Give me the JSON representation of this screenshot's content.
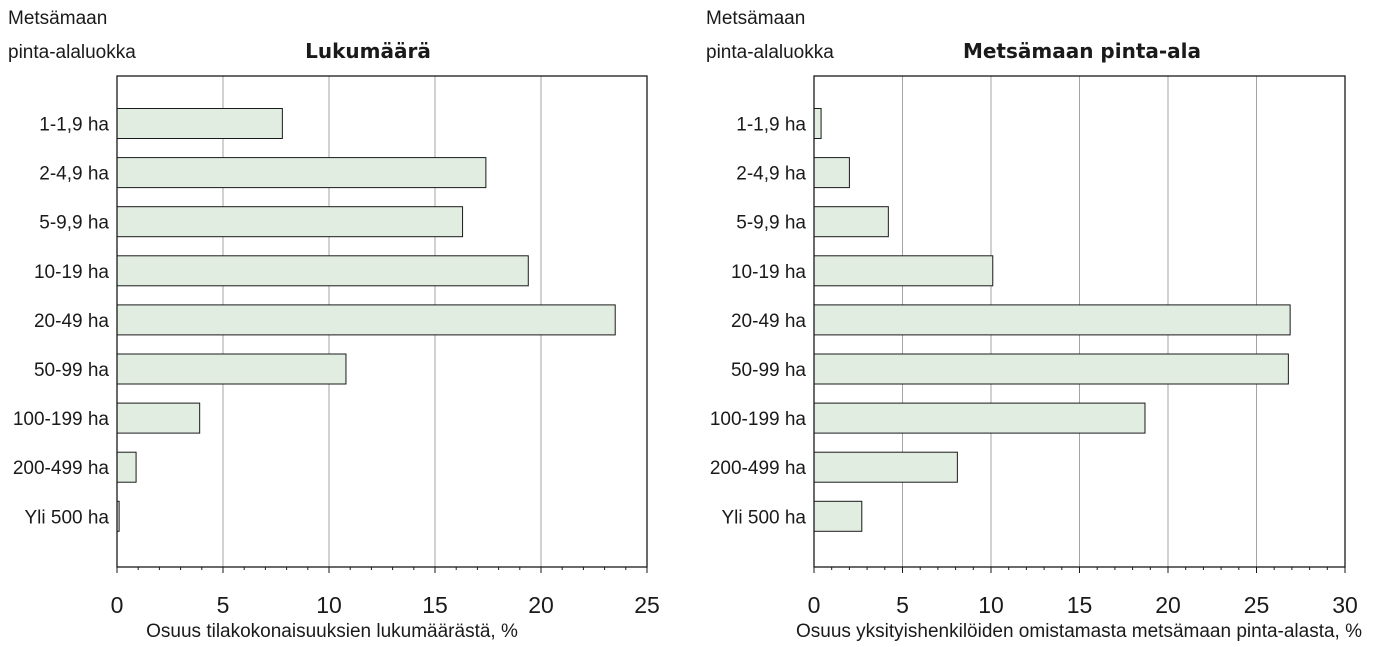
{
  "chart_data": [
    {
      "type": "bar",
      "orientation": "horizontal",
      "title": "Lukumäärä",
      "ylabel": [
        "Metsämaan",
        "pinta-alaluokka"
      ],
      "xlabel": "Osuus tilakokonaisuuksien lukumäärästä, %",
      "categories": [
        "1-1,9 ha",
        "2-4,9 ha",
        "5-9,9 ha",
        "10-19 ha",
        "20-49 ha",
        "50-99 ha",
        "100-199 ha",
        "200-499 ha",
        "Yli 500 ha"
      ],
      "values": [
        7.8,
        17.4,
        16.3,
        19.4,
        23.5,
        10.8,
        3.9,
        0.9,
        0.1
      ],
      "xlim": [
        0,
        25
      ],
      "xticks": [
        0,
        5,
        10,
        15,
        20,
        25
      ],
      "grid": true,
      "bar_color": "#e2ede2"
    },
    {
      "type": "bar",
      "orientation": "horizontal",
      "title": "Metsämaan pinta-ala",
      "ylabel": [
        "Metsämaan",
        "pinta-alaluokka"
      ],
      "xlabel": "Osuus yksityishenkilöiden omistamasta metsämaan pinta-alasta, %",
      "categories": [
        "1-1,9 ha",
        "2-4,9 ha",
        "5-9,9 ha",
        "10-19 ha",
        "20-49 ha",
        "50-99 ha",
        "100-199 ha",
        "200-499 ha",
        "Yli 500 ha"
      ],
      "values": [
        0.4,
        2.0,
        4.2,
        10.1,
        26.9,
        26.8,
        18.7,
        8.1,
        2.7
      ],
      "xlim": [
        0,
        30
      ],
      "xticks": [
        0,
        5,
        10,
        15,
        20,
        25,
        30
      ],
      "grid": true,
      "bar_color": "#e2ede2"
    }
  ]
}
